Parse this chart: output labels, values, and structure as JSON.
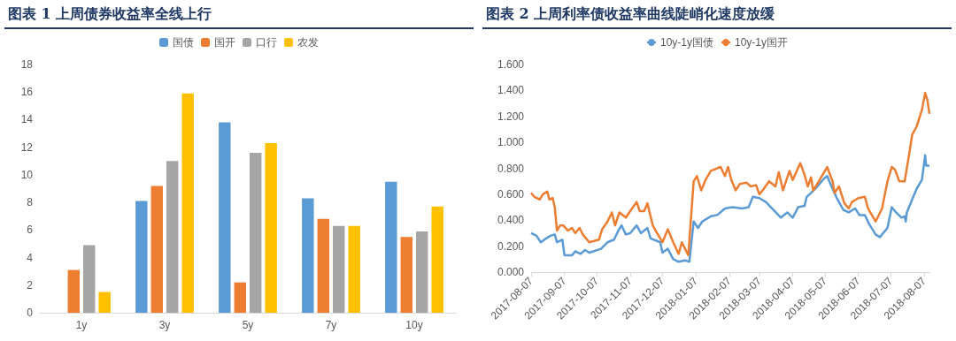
{
  "chart_data": [
    {
      "type": "bar",
      "title": "图表 1  上周债券收益率全线上行",
      "categories": [
        "1y",
        "3y",
        "5y",
        "7y",
        "10y"
      ],
      "series": [
        {
          "name": "国债",
          "color": "#5b9bd5",
          "values": [
            null,
            8.1,
            13.8,
            8.3,
            9.5
          ]
        },
        {
          "name": "国开",
          "color": "#ed7d31",
          "values": [
            3.1,
            9.2,
            2.2,
            6.8,
            5.5
          ]
        },
        {
          "name": "口行",
          "color": "#a5a5a5",
          "values": [
            4.9,
            11.0,
            11.6,
            6.3,
            5.9
          ]
        },
        {
          "name": "农发",
          "color": "#ffc000",
          "values": [
            1.5,
            15.9,
            12.3,
            6.3,
            7.7
          ]
        }
      ],
      "ylim": [
        0,
        18
      ],
      "yticks": [
        0,
        2,
        4,
        6,
        8,
        10,
        12,
        14,
        16,
        18
      ],
      "grid": false,
      "legend": "top"
    },
    {
      "type": "line",
      "title": "图表 2  上周利率债收益率曲线陡峭化速度放缓",
      "series": [
        {
          "name": "10y-1y国债",
          "color": "#5b9bd5",
          "x": [
            "2017-08-07",
            "2017-08-12",
            "2017-08-16",
            "2017-08-21",
            "2017-08-25",
            "2017-08-29",
            "2017-08-31",
            "2017-09-05",
            "2017-09-07",
            "2017-09-14",
            "2017-09-17",
            "2017-09-22",
            "2017-09-26",
            "2017-09-30",
            "2017-10-11",
            "2017-10-17",
            "2017-10-23",
            "2017-10-27",
            "2017-10-30",
            "2017-11-03",
            "2017-11-07",
            "2017-11-13",
            "2017-11-17",
            "2017-11-23",
            "2017-11-26",
            "2017-12-05",
            "2017-12-07",
            "2017-12-12",
            "2017-12-17",
            "2017-12-22",
            "2017-12-28",
            "2018-01-01",
            "2018-01-05",
            "2018-01-09",
            "2018-01-13",
            "2018-01-21",
            "2018-01-27",
            "2018-02-03",
            "2018-02-10",
            "2018-02-19",
            "2018-02-25",
            "2018-03-01",
            "2018-03-07",
            "2018-03-13",
            "2018-03-19",
            "2018-03-27",
            "2018-04-02",
            "2018-04-07",
            "2018-04-12",
            "2018-04-18",
            "2018-04-20",
            "2018-04-24",
            "2018-04-30",
            "2018-05-06",
            "2018-05-09",
            "2018-05-12",
            "2018-05-18",
            "2018-05-24",
            "2018-05-29",
            "2018-06-04",
            "2018-06-08",
            "2018-06-13",
            "2018-06-17",
            "2018-06-23",
            "2018-06-27",
            "2018-07-04",
            "2018-07-08",
            "2018-07-12",
            "2018-07-17",
            "2018-07-20",
            "2018-07-21",
            "2018-07-22",
            "2018-07-27",
            "2018-07-31",
            "2018-08-05",
            "2018-08-08",
            "2018-08-09",
            "2018-08-12"
          ],
          "values": [
            0.3,
            0.28,
            0.23,
            0.26,
            0.28,
            0.29,
            0.23,
            0.25,
            0.13,
            0.13,
            0.16,
            0.14,
            0.17,
            0.15,
            0.18,
            0.23,
            0.25,
            0.32,
            0.36,
            0.29,
            0.3,
            0.36,
            0.3,
            0.34,
            0.26,
            0.23,
            0.15,
            0.18,
            0.1,
            0.08,
            0.09,
            0.08,
            0.39,
            0.34,
            0.39,
            0.43,
            0.44,
            0.49,
            0.5,
            0.49,
            0.5,
            0.58,
            0.57,
            0.54,
            0.49,
            0.42,
            0.46,
            0.42,
            0.5,
            0.51,
            0.58,
            0.61,
            0.66,
            0.72,
            0.74,
            0.68,
            0.57,
            0.48,
            0.46,
            0.49,
            0.44,
            0.44,
            0.37,
            0.29,
            0.27,
            0.34,
            0.5,
            0.46,
            0.42,
            0.43,
            0.39,
            0.46,
            0.56,
            0.64,
            0.71,
            0.9,
            0.82,
            0.82
          ]
        },
        {
          "name": "10y-1y国开",
          "color": "#ed7d31",
          "x": [
            "2017-08-07",
            "2017-08-10",
            "2017-08-15",
            "2017-08-18",
            "2017-08-22",
            "2017-08-24",
            "2017-08-27",
            "2017-08-29",
            "2017-08-31",
            "2017-09-03",
            "2017-09-06",
            "2017-09-10",
            "2017-09-14",
            "2017-09-17",
            "2017-09-21",
            "2017-09-24",
            "2017-09-30",
            "2017-10-09",
            "2017-10-12",
            "2017-10-17",
            "2017-10-21",
            "2017-10-24",
            "2017-10-28",
            "2017-11-03",
            "2017-11-07",
            "2017-11-13",
            "2017-11-16",
            "2017-11-20",
            "2017-11-23",
            "2017-11-28",
            "2017-12-02",
            "2017-12-07",
            "2017-12-12",
            "2017-12-17",
            "2017-12-22",
            "2017-12-25",
            "2017-12-31",
            "2018-01-05",
            "2018-01-08",
            "2018-01-12",
            "2018-01-16",
            "2018-01-21",
            "2018-01-30",
            "2018-02-03",
            "2018-02-06",
            "2018-02-09",
            "2018-02-13",
            "2018-02-17",
            "2018-02-23",
            "2018-02-27",
            "2018-03-04",
            "2018-03-07",
            "2018-03-11",
            "2018-03-16",
            "2018-03-22",
            "2018-03-25",
            "2018-03-29",
            "2018-04-04",
            "2018-04-07",
            "2018-04-14",
            "2018-04-18",
            "2018-04-21",
            "2018-04-24",
            "2018-04-26",
            "2018-05-02",
            "2018-05-09",
            "2018-05-14",
            "2018-05-16",
            "2018-05-20",
            "2018-05-25",
            "2018-05-29",
            "2018-06-01",
            "2018-06-07",
            "2018-06-13",
            "2018-06-16",
            "2018-06-23",
            "2018-06-29",
            "2018-07-04",
            "2018-07-08",
            "2018-07-11",
            "2018-07-15",
            "2018-07-20",
            "2018-07-24",
            "2018-07-27",
            "2018-07-31",
            "2018-08-05",
            "2018-08-08",
            "2018-08-10",
            "2018-08-12"
          ],
          "values": [
            0.61,
            0.58,
            0.56,
            0.6,
            0.62,
            0.56,
            0.57,
            0.5,
            0.32,
            0.36,
            0.36,
            0.32,
            0.34,
            0.3,
            0.34,
            0.29,
            0.23,
            0.25,
            0.33,
            0.39,
            0.46,
            0.36,
            0.46,
            0.42,
            0.47,
            0.54,
            0.47,
            0.47,
            0.53,
            0.36,
            0.3,
            0.23,
            0.33,
            0.23,
            0.14,
            0.23,
            0.13,
            0.7,
            0.74,
            0.63,
            0.71,
            0.78,
            0.81,
            0.74,
            0.81,
            0.71,
            0.63,
            0.68,
            0.69,
            0.66,
            0.67,
            0.6,
            0.64,
            0.7,
            0.66,
            0.77,
            0.63,
            0.78,
            0.71,
            0.84,
            0.75,
            0.66,
            0.73,
            0.63,
            0.71,
            0.81,
            0.7,
            0.61,
            0.66,
            0.53,
            0.49,
            0.54,
            0.57,
            0.58,
            0.49,
            0.39,
            0.49,
            0.7,
            0.81,
            0.79,
            0.7,
            0.7,
            0.9,
            1.06,
            1.12,
            1.25,
            1.38,
            1.33,
            1.22
          ]
        }
      ],
      "xlim": [
        "2017-08-07",
        "2018-08-12"
      ],
      "xticks": [
        "2017-08-07",
        "2017-09-07",
        "2017-10-07",
        "2017-11-07",
        "2017-12-07",
        "2018-01-07",
        "2018-02-07",
        "2018-03-07",
        "2018-04-07",
        "2018-05-07",
        "2018-06-07",
        "2018-07-07",
        "2018-08-07"
      ],
      "ylim": [
        0,
        1.6
      ],
      "yticks": [
        {
          "value": 0,
          "label": "0.000"
        },
        {
          "value": 0.2,
          "label": "0.200"
        },
        {
          "value": 0.4,
          "label": "0.400"
        },
        {
          "value": 0.6,
          "label": "0.600"
        },
        {
          "value": 0.8,
          "label": "0.800"
        },
        {
          "value": 1.0,
          "label": "1.000"
        },
        {
          "value": 1.2,
          "label": "1.200"
        },
        {
          "value": 1.4,
          "label": "1.400"
        },
        {
          "value": 1.6,
          "label": "1.600"
        }
      ],
      "grid": false,
      "legend": "top",
      "marker": "none",
      "line_style": "solid"
    }
  ]
}
